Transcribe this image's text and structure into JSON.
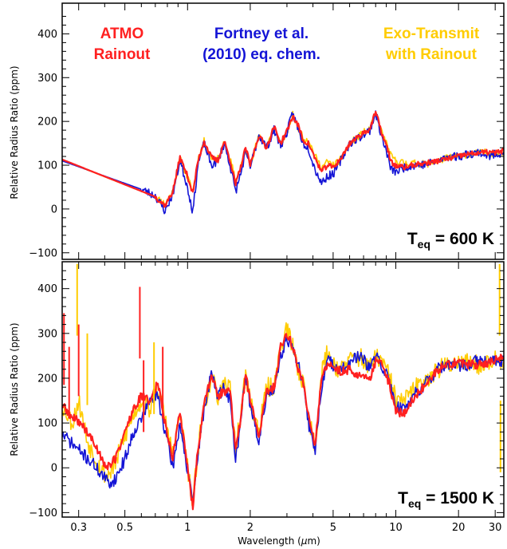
{
  "colors": {
    "atmo": "#ff2020",
    "fortney": "#1414d6",
    "exo": "#ffcc00",
    "axes": "#000000"
  },
  "xlabel": {
    "prefix": "Wavelength (",
    "mu": "μ",
    "suffix": "m)"
  },
  "chart_data": [
    {
      "type": "line",
      "panel": "top",
      "xscale": "log",
      "xlim": [
        0.25,
        33
      ],
      "ylim": [
        -115,
        470
      ],
      "ylabel": "Relative Radius Ratio (ppm)",
      "x_ticks": [
        0.3,
        0.5,
        1,
        2,
        5,
        10,
        20,
        30
      ],
      "y_ticks": [
        -100,
        0,
        100,
        200,
        300,
        400
      ],
      "annotation": {
        "main": "T",
        "sub": "eq",
        "rest": " = 600 K"
      },
      "legend": [
        {
          "lines": [
            "ATMO",
            "Rainout"
          ],
          "color": "#ff2020"
        },
        {
          "lines": [
            "Fortney et al.",
            "(2010) eq. chem."
          ],
          "color": "#1414d6"
        },
        {
          "lines": [
            "Exo-Transmit",
            "with Rainout"
          ],
          "color": "#ffcc00"
        }
      ],
      "series": [
        {
          "key": "exo",
          "color": "#ffcc00",
          "noise": 8,
          "seed": 11,
          "x": [
            0.25,
            0.7,
            0.78,
            0.85,
            0.92,
            1.0,
            1.06,
            1.12,
            1.2,
            1.3,
            1.4,
            1.5,
            1.6,
            1.7,
            1.8,
            1.9,
            2.0,
            2.2,
            2.4,
            2.6,
            2.8,
            3.0,
            3.2,
            3.4,
            3.6,
            3.8,
            4.1,
            4.4,
            4.7,
            5.0,
            5.5,
            6.0,
            6.5,
            7.0,
            7.5,
            8.0,
            8.5,
            9.0,
            9.5,
            10.0,
            11.0,
            12,
            14,
            16,
            18,
            20,
            22,
            25,
            28,
            30,
            33
          ],
          "y": [
            112,
            28,
            12,
            40,
            115,
            72,
            40,
            112,
            155,
            118,
            115,
            150,
            115,
            65,
            98,
            135,
            105,
            165,
            145,
            185,
            150,
            175,
            215,
            185,
            160,
            160,
            120,
            95,
            108,
            100,
            115,
            150,
            162,
            175,
            182,
            215,
            180,
            150,
            120,
            110,
            105,
            105,
            102,
            110,
            118,
            120,
            125,
            128,
            130,
            125,
            132
          ]
        },
        {
          "key": "fortney",
          "color": "#1414d6",
          "noise": 10,
          "seed": 23,
          "x": [
            0.25,
            0.6,
            0.7,
            0.78,
            0.85,
            0.92,
            1.0,
            1.06,
            1.12,
            1.2,
            1.3,
            1.4,
            1.5,
            1.6,
            1.7,
            1.8,
            1.9,
            2.0,
            2.2,
            2.4,
            2.6,
            2.8,
            3.0,
            3.2,
            3.4,
            3.6,
            3.8,
            4.1,
            4.4,
            4.7,
            5.0,
            5.5,
            6.0,
            6.5,
            7.0,
            7.5,
            8.0,
            8.5,
            9.0,
            9.5,
            10.0,
            11.0,
            12,
            14,
            16,
            18,
            20,
            22,
            25,
            28,
            30,
            33
          ],
          "y": [
            110,
            45,
            30,
            -5,
            35,
            110,
            50,
            -8,
            100,
            150,
            100,
            110,
            150,
            100,
            40,
            80,
            130,
            95,
            170,
            140,
            180,
            145,
            175,
            220,
            180,
            150,
            140,
            90,
            60,
            75,
            80,
            115,
            150,
            160,
            170,
            180,
            220,
            170,
            130,
            90,
            85,
            95,
            100,
            102,
            110,
            120,
            120,
            125,
            130,
            120,
            125,
            130
          ]
        },
        {
          "key": "atmo",
          "color": "#ff2020",
          "noise": 6,
          "seed": 37,
          "x": [
            0.25,
            0.7,
            0.78,
            0.85,
            0.92,
            1.0,
            1.06,
            1.12,
            1.2,
            1.3,
            1.4,
            1.5,
            1.6,
            1.7,
            1.8,
            1.9,
            2.0,
            2.2,
            2.4,
            2.6,
            2.8,
            3.0,
            3.2,
            3.4,
            3.6,
            3.8,
            4.1,
            4.4,
            4.7,
            5.0,
            5.5,
            6.0,
            6.5,
            7.0,
            7.5,
            8.0,
            8.5,
            9.0,
            9.5,
            10.0,
            11.0,
            12,
            14,
            16,
            18,
            20,
            22,
            25,
            28,
            30,
            33
          ],
          "y": [
            113,
            28,
            8,
            40,
            118,
            75,
            35,
            108,
            155,
            118,
            110,
            155,
            112,
            55,
            95,
            140,
            100,
            168,
            140,
            188,
            150,
            178,
            212,
            190,
            155,
            150,
            115,
            85,
            100,
            95,
            118,
            150,
            162,
            175,
            182,
            222,
            178,
            145,
            108,
            98,
            95,
            100,
            105,
            110,
            115,
            120,
            125,
            128,
            130,
            128,
            134
          ]
        }
      ]
    },
    {
      "type": "line",
      "panel": "bottom",
      "xscale": "log",
      "xlim": [
        0.25,
        33
      ],
      "ylim": [
        -110,
        460
      ],
      "xlabel": "Wavelength (μm)",
      "ylabel": "Relative Radius Ratio (ppm)",
      "x_ticks": [
        0.3,
        0.5,
        1,
        2,
        5,
        10,
        20,
        30
      ],
      "y_ticks": [
        -100,
        0,
        100,
        200,
        300,
        400
      ],
      "annotation": {
        "main": "T",
        "sub": "eq",
        "rest": " = 1500 K"
      },
      "series": [
        {
          "key": "exo",
          "color": "#ffcc00",
          "noise": 22,
          "seed": 53,
          "x": [
            0.25,
            0.28,
            0.3,
            0.33,
            0.37,
            0.41,
            0.45,
            0.5,
            0.55,
            0.6,
            0.66,
            0.72,
            0.78,
            0.85,
            0.92,
            1.0,
            1.06,
            1.12,
            1.2,
            1.3,
            1.4,
            1.5,
            1.6,
            1.7,
            1.8,
            1.9,
            2.0,
            2.2,
            2.4,
            2.6,
            2.8,
            3.0,
            3.2,
            3.4,
            3.6,
            3.8,
            4.1,
            4.4,
            4.7,
            5.0,
            5.5,
            6.0,
            6.5,
            7.0,
            7.5,
            8.0,
            8.5,
            9.0,
            9.5,
            10.0,
            11.0,
            12,
            14,
            16,
            18,
            20,
            22,
            25,
            28,
            30,
            33
          ],
          "y": [
            140,
            100,
            150,
            60,
            10,
            -20,
            10,
            70,
            120,
            150,
            130,
            180,
            110,
            30,
            120,
            0,
            -85,
            40,
            140,
            200,
            160,
            180,
            180,
            40,
            120,
            210,
            150,
            80,
            180,
            180,
            270,
            310,
            270,
            220,
            190,
            110,
            50,
            210,
            260,
            230,
            220,
            240,
            250,
            240,
            220,
            250,
            240,
            220,
            190,
            150,
            150,
            170,
            200,
            220,
            230,
            240,
            235,
            230,
            240,
            250,
            240
          ]
        },
        {
          "key": "fortney",
          "color": "#1414d6",
          "noise": 14,
          "seed": 71,
          "x": [
            0.25,
            0.3,
            0.35,
            0.42,
            0.45,
            0.5,
            0.55,
            0.6,
            0.66,
            0.72,
            0.78,
            0.85,
            0.92,
            1.0,
            1.06,
            1.12,
            1.2,
            1.3,
            1.4,
            1.5,
            1.6,
            1.7,
            1.8,
            1.9,
            2.0,
            2.2,
            2.4,
            2.6,
            2.8,
            3.0,
            3.2,
            3.4,
            3.6,
            3.8,
            4.1,
            4.4,
            4.7,
            5.0,
            5.5,
            6.0,
            6.5,
            7.0,
            7.5,
            8.0,
            8.5,
            9.0,
            9.5,
            10.0,
            11.0,
            12,
            14,
            16,
            18,
            20,
            22,
            25,
            28,
            30,
            33
          ],
          "y": [
            75,
            40,
            10,
            -35,
            -25,
            20,
            80,
            110,
            150,
            160,
            80,
            0,
            100,
            -10,
            -80,
            30,
            130,
            210,
            160,
            180,
            150,
            20,
            100,
            210,
            140,
            60,
            160,
            180,
            250,
            290,
            270,
            230,
            180,
            100,
            40,
            180,
            240,
            230,
            220,
            230,
            250,
            240,
            220,
            250,
            230,
            210,
            180,
            140,
            130,
            160,
            190,
            220,
            230,
            225,
            230,
            240,
            235,
            240,
            240
          ]
        },
        {
          "key": "atmo",
          "color": "#ff2020",
          "noise": 10,
          "seed": 89,
          "x": [
            0.25,
            0.28,
            0.3,
            0.33,
            0.37,
            0.41,
            0.45,
            0.5,
            0.55,
            0.6,
            0.66,
            0.72,
            0.78,
            0.85,
            0.92,
            1.0,
            1.06,
            1.12,
            1.2,
            1.3,
            1.4,
            1.5,
            1.6,
            1.7,
            1.8,
            1.9,
            2.0,
            2.2,
            2.4,
            2.6,
            2.8,
            3.0,
            3.2,
            3.4,
            3.6,
            3.8,
            4.1,
            4.4,
            4.7,
            5.0,
            5.5,
            6.0,
            6.5,
            7.0,
            7.5,
            8.0,
            8.5,
            9.0,
            9.5,
            10.0,
            11.0,
            12,
            14,
            16,
            18,
            20,
            22,
            25,
            28,
            30,
            33
          ],
          "y": [
            140,
            110,
            105,
            80,
            40,
            0,
            20,
            80,
            130,
            160,
            150,
            190,
            100,
            20,
            130,
            0,
            -90,
            40,
            140,
            210,
            160,
            170,
            170,
            40,
            110,
            210,
            150,
            70,
            170,
            180,
            270,
            300,
            270,
            220,
            190,
            120,
            50,
            200,
            230,
            225,
            215,
            220,
            210,
            200,
            195,
            240,
            235,
            210,
            170,
            125,
            120,
            150,
            190,
            220,
            230,
            235,
            230,
            230,
            235,
            240,
            245
          ]
        }
      ],
      "spikes": [
        {
          "x": 0.255,
          "y": 345,
          "color": "#ff2020"
        },
        {
          "x": 0.27,
          "y": 270,
          "color": "#ff2020"
        },
        {
          "x": 0.295,
          "y": 455,
          "color": "#ffcc00"
        },
        {
          "x": 0.3,
          "y": 320,
          "color": "#ff2020"
        },
        {
          "x": 0.33,
          "y": 300,
          "color": "#ffcc00"
        },
        {
          "x": 0.59,
          "y": 404,
          "color": "#ff2020"
        },
        {
          "x": 0.615,
          "y": 240,
          "color": "#ff2020"
        },
        {
          "x": 0.69,
          "y": 280,
          "color": "#ffcc00"
        },
        {
          "x": 0.76,
          "y": 270,
          "color": "#ff2020"
        },
        {
          "x": 31.5,
          "y": 455,
          "color": "#ffcc00"
        },
        {
          "x": 31.8,
          "y": 150,
          "color": "#ffcc00"
        }
      ]
    }
  ]
}
